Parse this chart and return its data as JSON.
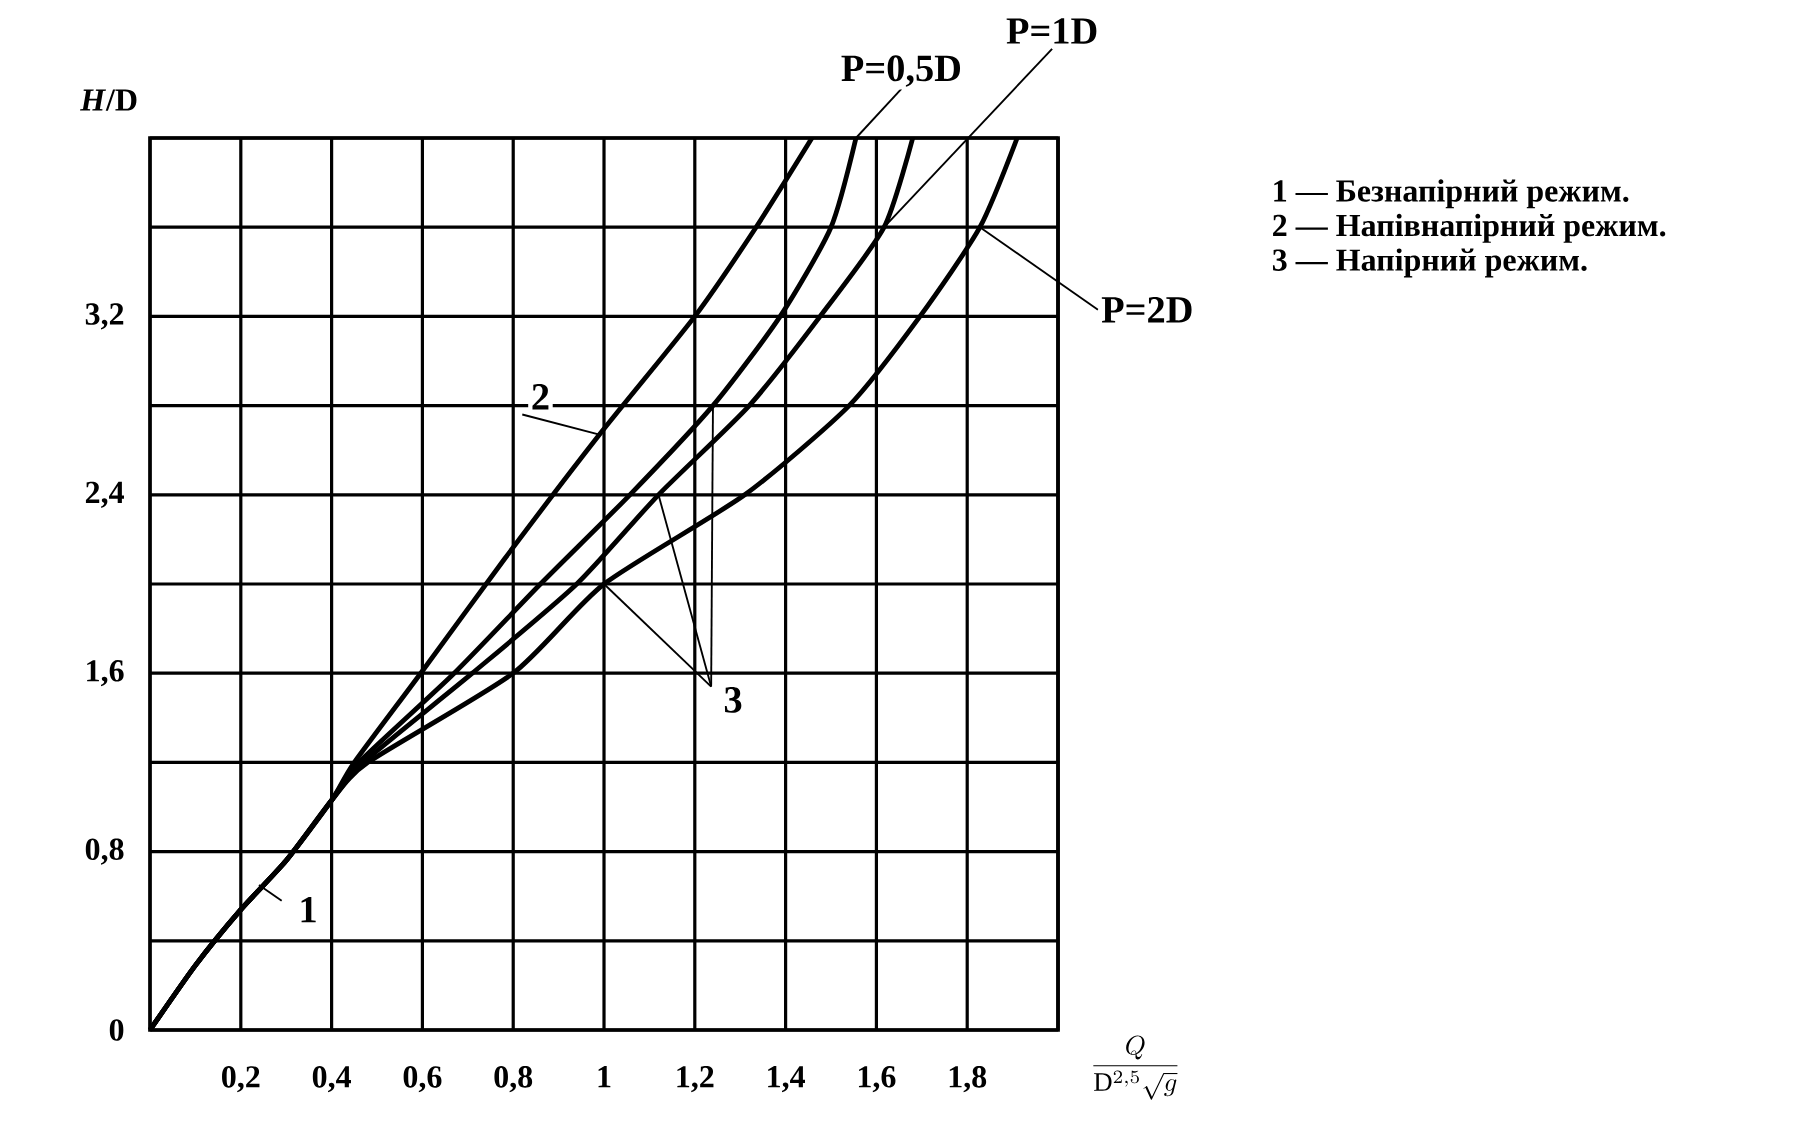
{
  "chart_data": {
    "type": "line",
    "xlabel": "\\frac{Q}{\\mathrm{D}^{2{,}5}\\sqrt{g}}",
    "ylabel": "*H*/D",
    "xlim": [
      0,
      2
    ],
    "ylim": [
      0,
      4
    ],
    "xticks": [
      {
        "value": 0.2,
        "label": "0,2"
      },
      {
        "value": 0.4,
        "label": "0,4"
      },
      {
        "value": 0.6,
        "label": "0,6"
      },
      {
        "value": 0.8,
        "label": "0,8"
      },
      {
        "value": 1,
        "label": "1"
      },
      {
        "value": 1.2,
        "label": "1,2"
      },
      {
        "value": 1.4,
        "label": "1,4"
      },
      {
        "value": 1.6,
        "label": "1,6"
      },
      {
        "value": 1.8,
        "label": "1,8"
      },
      {
        "value": 2,
        "label": null
      }
    ],
    "yticks": [
      0,
      {
        "value": 0.4,
        "label": null
      },
      {
        "value": 0.8,
        "label": "0,8"
      },
      {
        "value": 1.2,
        "label": null
      },
      {
        "value": 1.6,
        "label": "1,6"
      },
      {
        "value": 2,
        "label": null
      },
      {
        "value": 2.4,
        "label": "2,4"
      },
      {
        "value": 2.8,
        "label": null
      },
      {
        "value": 3.2,
        "label": "3,2"
      },
      {
        "value": 3.6,
        "label": null
      },
      {
        "value": 4,
        "label": null
      }
    ],
    "grid": true,
    "legend": false,
    "marker": "none",
    "line_style": "solid",
    "series": [
      {
        "name": "2",
        "color": "#000000",
        "x": [
          0,
          0.1,
          0.2,
          0.3,
          0.4,
          0.45,
          0.6,
          0.78,
          0.99,
          1.2,
          1.335,
          1.458
        ],
        "values": [
          0,
          0.29,
          0.54,
          0.76,
          1.03,
          1.2,
          1.61,
          2.11,
          2.67,
          3.2,
          3.6,
          4.0
        ]
      },
      {
        "name": "P=0,5D",
        "color": "#000000",
        "x": [
          0,
          0.1,
          0.2,
          0.3,
          0.4,
          0.46,
          0.67,
          0.86,
          1.057,
          1.24,
          1.388,
          1.5,
          1.555
        ],
        "values": [
          0,
          0.29,
          0.54,
          0.76,
          1.03,
          1.2,
          1.6,
          2.0,
          2.4,
          2.8,
          3.2,
          3.6,
          4.0
        ]
      },
      {
        "name": "P=1D",
        "color": "#000000",
        "x": [
          0,
          0.1,
          0.2,
          0.3,
          0.4,
          0.47,
          0.71,
          0.94,
          1.12,
          1.32,
          1.476,
          1.617,
          1.68
        ],
        "values": [
          0,
          0.29,
          0.54,
          0.76,
          1.03,
          1.2,
          1.6,
          2.0,
          2.4,
          2.8,
          3.2,
          3.6,
          4.0
        ]
      },
      {
        "name": "P=2D",
        "color": "#000000",
        "x": [
          0,
          0.1,
          0.2,
          0.3,
          0.4,
          0.48,
          0.8,
          1.0,
          1.31,
          1.54,
          1.696,
          1.828,
          1.91
        ],
        "values": [
          0,
          0.29,
          0.54,
          0.76,
          1.03,
          1.2,
          1.6,
          2.0,
          2.4,
          2.8,
          3.2,
          3.6,
          4.0
        ]
      }
    ],
    "annotations": [
      {
        "text": "1",
        "x": 0.24,
        "y": 0.65
      },
      {
        "text": "3",
        "x": 1.24,
        "y": 2.8
      },
      "1 — Безнапірний режим.",
      "2 — Напівнапірний режим.",
      "3 — Напірний режим."
    ]
  }
}
